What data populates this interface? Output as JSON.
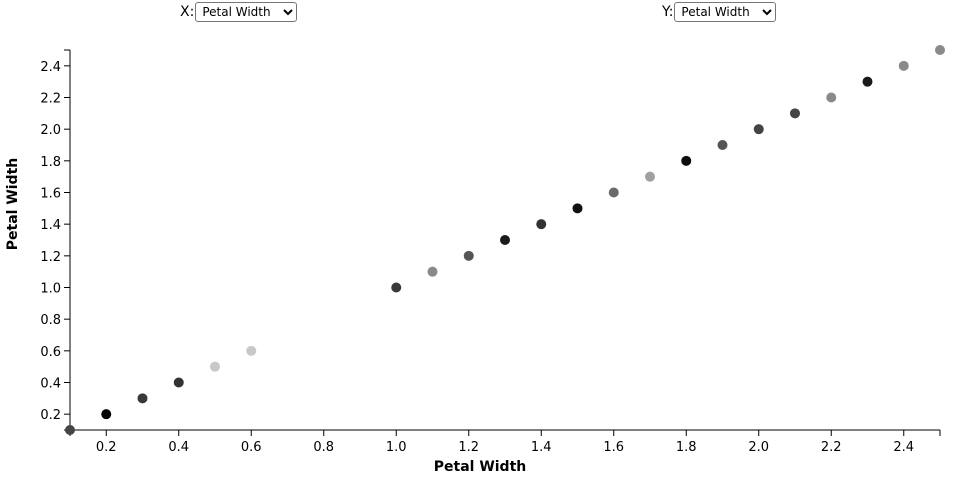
{
  "controls": {
    "x_label": "X:",
    "y_label": "Y:",
    "x_selected": "Petal Width",
    "y_selected": "Petal Width"
  },
  "chart_data": {
    "type": "scatter",
    "title": "",
    "xlabel": "Petal Width",
    "ylabel": "Petal Width",
    "xlim": [
      0.1,
      2.5
    ],
    "ylim": [
      0.1,
      2.5
    ],
    "xticks": [
      "0.2",
      "0.4",
      "0.6",
      "0.8",
      "1.0",
      "1.2",
      "1.4",
      "1.6",
      "1.8",
      "2.0",
      "2.2",
      "2.4"
    ],
    "yticks": [
      "0.2",
      "0.4",
      "0.6",
      "0.8",
      "1.0",
      "1.2",
      "1.4",
      "1.6",
      "1.8",
      "2.0",
      "2.2",
      "2.4"
    ],
    "grid": false,
    "points": [
      {
        "x": 0.1,
        "y": 0.1,
        "color": "#444444"
      },
      {
        "x": 0.2,
        "y": 0.2,
        "color": "#050505"
      },
      {
        "x": 0.3,
        "y": 0.3,
        "color": "#393939"
      },
      {
        "x": 0.4,
        "y": 0.4,
        "color": "#333333"
      },
      {
        "x": 0.5,
        "y": 0.5,
        "color": "#c8c8c8"
      },
      {
        "x": 0.6,
        "y": 0.6,
        "color": "#c8c8c8"
      },
      {
        "x": 1.0,
        "y": 1.0,
        "color": "#3a3a3a"
      },
      {
        "x": 1.1,
        "y": 1.1,
        "color": "#8a8a8a"
      },
      {
        "x": 1.2,
        "y": 1.2,
        "color": "#555555"
      },
      {
        "x": 1.3,
        "y": 1.3,
        "color": "#1a1a1a"
      },
      {
        "x": 1.4,
        "y": 1.4,
        "color": "#333333"
      },
      {
        "x": 1.5,
        "y": 1.5,
        "color": "#111111"
      },
      {
        "x": 1.6,
        "y": 1.6,
        "color": "#6a6a6a"
      },
      {
        "x": 1.7,
        "y": 1.7,
        "color": "#a0a0a0"
      },
      {
        "x": 1.8,
        "y": 1.8,
        "color": "#0d0d0d"
      },
      {
        "x": 1.9,
        "y": 1.9,
        "color": "#555555"
      },
      {
        "x": 2.0,
        "y": 2.0,
        "color": "#444444"
      },
      {
        "x": 2.1,
        "y": 2.1,
        "color": "#444444"
      },
      {
        "x": 2.2,
        "y": 2.2,
        "color": "#8a8a8a"
      },
      {
        "x": 2.3,
        "y": 2.3,
        "color": "#1a1a1a"
      },
      {
        "x": 2.4,
        "y": 2.4,
        "color": "#8a8a8a"
      },
      {
        "x": 2.5,
        "y": 2.5,
        "color": "#8a8a8a"
      }
    ]
  }
}
